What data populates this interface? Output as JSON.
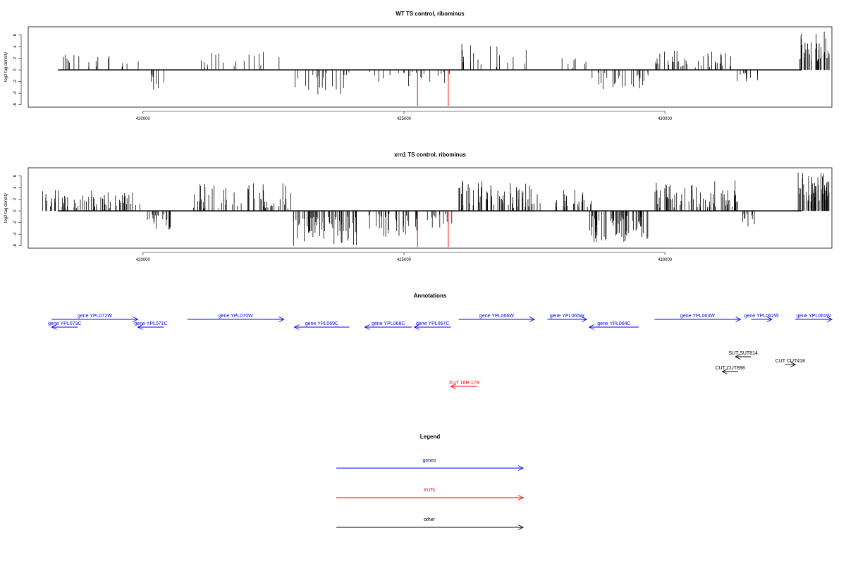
{
  "colors": {
    "gene": "#0000ff",
    "xut": "#ff0000",
    "other": "#000000",
    "bars": "#000000"
  },
  "chart_data": [
    {
      "type": "bar",
      "title": "WT TS control, ribominus",
      "ylabel": "log2 tag density",
      "xlim": [
        417800,
        433200
      ],
      "ylim": [
        -6.4,
        7.4
      ],
      "yticks": [
        "-6",
        "-4",
        "-2",
        "0",
        "2",
        "4",
        "6"
      ],
      "xticks": [
        420000,
        425000,
        430000
      ],
      "xtick_labels": [
        "420000",
        "425000",
        "430000"
      ],
      "regions": [
        {
          "start": 418400,
          "end": 419950,
          "sign": 1,
          "density": 1.6,
          "lo": 0.5,
          "hi": 2.6
        },
        {
          "start": 420050,
          "end": 420450,
          "sign": -1,
          "density": 2.2,
          "lo": 0.6,
          "hi": 3.4
        },
        {
          "start": 420850,
          "end": 422700,
          "sign": 1,
          "density": 1.3,
          "lo": 0.4,
          "hi": 3.2
        },
        {
          "start": 422850,
          "end": 424000,
          "sign": -1,
          "density": 2.4,
          "lo": 0.4,
          "hi": 4.2
        },
        {
          "start": 424300,
          "end": 425900,
          "sign": -1,
          "density": 1.8,
          "lo": 0.3,
          "hi": 2.8
        },
        {
          "start": 426100,
          "end": 427400,
          "sign": 1,
          "density": 1.8,
          "lo": 0.4,
          "hi": 4.5
        },
        {
          "start": 428000,
          "end": 428500,
          "sign": 1,
          "density": 1.8,
          "lo": 0.4,
          "hi": 2.3
        },
        {
          "start": 428600,
          "end": 429700,
          "sign": -1,
          "density": 3.2,
          "lo": 0.5,
          "hi": 3.5
        },
        {
          "start": 429800,
          "end": 431300,
          "sign": 1,
          "density": 3.8,
          "lo": 0.4,
          "hi": 3.4
        },
        {
          "start": 431300,
          "end": 431850,
          "sign": -1,
          "density": 2.6,
          "lo": 0.5,
          "hi": 2.0
        },
        {
          "start": 432550,
          "end": 433150,
          "sign": 1,
          "density": 9.0,
          "lo": 1.5,
          "hi": 6.6
        }
      ],
      "highlight": [
        {
          "x": 425260,
          "y": -6.2,
          "color": "#ff0000"
        },
        {
          "x": 425850,
          "y": -6.2,
          "color": "#ff0000"
        }
      ]
    },
    {
      "type": "bar",
      "title": "xrn1 TS control, ribominus",
      "ylabel": "log2 tag density",
      "xlim": [
        417800,
        433200
      ],
      "ylim": [
        -6.4,
        7.4
      ],
      "yticks": [
        "-6",
        "-4",
        "-2",
        "0",
        "2",
        "4",
        "6"
      ],
      "xticks": [
        420000,
        425000,
        430000
      ],
      "xtick_labels": [
        "420000",
        "425000",
        "430000"
      ],
      "regions": [
        {
          "start": 418050,
          "end": 419950,
          "sign": 1,
          "density": 4.8,
          "lo": 0.5,
          "hi": 3.6
        },
        {
          "start": 420050,
          "end": 420550,
          "sign": -1,
          "density": 5.5,
          "lo": 0.6,
          "hi": 3.6
        },
        {
          "start": 420850,
          "end": 422850,
          "sign": 1,
          "density": 3.8,
          "lo": 0.4,
          "hi": 4.8
        },
        {
          "start": 422850,
          "end": 424100,
          "sign": -1,
          "density": 6.5,
          "lo": 1.0,
          "hi": 6.2
        },
        {
          "start": 424300,
          "end": 426000,
          "sign": -1,
          "density": 3.4,
          "lo": 0.5,
          "hi": 4.6
        },
        {
          "start": 426050,
          "end": 427700,
          "sign": 1,
          "density": 5.5,
          "lo": 0.5,
          "hi": 5.4
        },
        {
          "start": 427800,
          "end": 428600,
          "sign": 1,
          "density": 4.0,
          "lo": 0.5,
          "hi": 3.9
        },
        {
          "start": 428500,
          "end": 429700,
          "sign": -1,
          "density": 7.0,
          "lo": 0.8,
          "hi": 5.4
        },
        {
          "start": 429800,
          "end": 431400,
          "sign": 1,
          "density": 5.5,
          "lo": 0.5,
          "hi": 5.4
        },
        {
          "start": 431400,
          "end": 431750,
          "sign": -1,
          "density": 4.0,
          "lo": 0.5,
          "hi": 3.0
        },
        {
          "start": 432550,
          "end": 433150,
          "sign": 1,
          "density": 12.0,
          "lo": 1.5,
          "hi": 6.8
        }
      ],
      "highlight": [
        {
          "x": 425260,
          "y": -6.2,
          "color": "#ff0000"
        },
        {
          "x": 425850,
          "y": -6.2,
          "color": "#ff0000"
        }
      ]
    }
  ],
  "annotations": {
    "title": "Annotations",
    "features": [
      {
        "label": "gene YPL073C",
        "kind": "gene",
        "start": 418250,
        "end": 418750,
        "strand": "-",
        "row": 1
      },
      {
        "label": "gene YPL072W",
        "kind": "gene",
        "start": 418250,
        "end": 419900,
        "strand": "+",
        "row": 0
      },
      {
        "label": "gene YPL071C",
        "kind": "gene",
        "start": 419900,
        "end": 420400,
        "strand": "-",
        "row": 1
      },
      {
        "label": "gene YPL070W",
        "kind": "gene",
        "start": 420850,
        "end": 422700,
        "strand": "+",
        "row": 0
      },
      {
        "label": "gene YPL069C",
        "kind": "gene",
        "start": 422900,
        "end": 423950,
        "strand": "-",
        "row": 1
      },
      {
        "label": "gene YPL068C",
        "kind": "gene",
        "start": 424250,
        "end": 425150,
        "strand": "-",
        "row": 1
      },
      {
        "label": "gene YPL067C",
        "kind": "gene",
        "start": 425200,
        "end": 425900,
        "strand": "-",
        "row": 1
      },
      {
        "label": "gene YPL066W",
        "kind": "gene",
        "start": 426050,
        "end": 427500,
        "strand": "+",
        "row": 0
      },
      {
        "label": "gene YPL065W",
        "kind": "gene",
        "start": 427750,
        "end": 428500,
        "strand": "+",
        "row": 0
      },
      {
        "label": "gene YPL064C",
        "kind": "gene",
        "start": 428550,
        "end": 429500,
        "strand": "-",
        "row": 1
      },
      {
        "label": "gene YPL063W",
        "kind": "gene",
        "start": 429800,
        "end": 431450,
        "strand": "+",
        "row": 0
      },
      {
        "label": "gene YPL062W",
        "kind": "gene",
        "start": 431650,
        "end": 432050,
        "strand": "+",
        "row": 0
      },
      {
        "label": "gene YPL061W",
        "kind": "gene",
        "start": 432500,
        "end": 433200,
        "strand": "+",
        "row": 0
      },
      {
        "label": "SUT SUT814",
        "kind": "other",
        "start": 431350,
        "end": 431650,
        "strand": "-",
        "row": 3
      },
      {
        "label": "CUT CUT418",
        "kind": "other",
        "start": 432300,
        "end": 432500,
        "strand": "+",
        "row": 4
      },
      {
        "label": "CUT CUT898",
        "kind": "other",
        "start": 431100,
        "end": 431400,
        "strand": "-",
        "row": 5
      },
      {
        "label": "XUT 16R-179",
        "kind": "xut",
        "start": 425900,
        "end": 426400,
        "strand": "-",
        "row": 7
      }
    ]
  },
  "legend": {
    "title": "Legend",
    "items": [
      {
        "label": "genes",
        "kind": "gene"
      },
      {
        "label": "XUTs",
        "kind": "xut"
      },
      {
        "label": "other",
        "kind": "other"
      }
    ]
  }
}
